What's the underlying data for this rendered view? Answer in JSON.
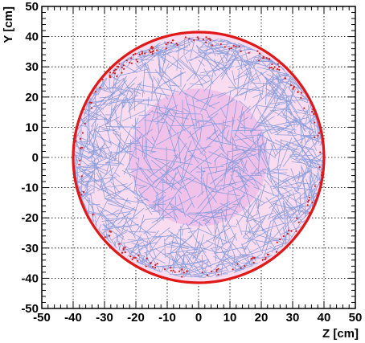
{
  "chart_data": {
    "type": "scatter",
    "title": "",
    "xlabel": "Z [cm]",
    "ylabel": "Y [cm]",
    "xlim": [
      -50,
      50
    ],
    "ylim": [
      -50,
      50
    ],
    "xticks": [
      "-50",
      "-40",
      "-30",
      "-20",
      "-10",
      "0",
      "10",
      "20",
      "30",
      "40",
      "50"
    ],
    "yticks": [
      "-50",
      "-40",
      "-30",
      "-20",
      "-10",
      "0",
      "10",
      "20",
      "30",
      "40",
      "50"
    ],
    "grid": true,
    "regions": [
      {
        "name": "outer-disk",
        "shape": "circle",
        "center": [
          0,
          0
        ],
        "radius": 40,
        "fill": "#f9dcef",
        "edge": "#e01818"
      },
      {
        "name": "inner-disk",
        "shape": "circle",
        "center": [
          0,
          0
        ],
        "radius": 22,
        "fill": "#f0c2ea"
      }
    ],
    "tracks": {
      "color": "#7f98dc",
      "count_shown": 1200,
      "distribution": "dense near rim, sparse near center"
    },
    "boundary_hits": {
      "color": "#e01818",
      "radius": 40
    }
  },
  "colors": {
    "axis": "#000000",
    "grid": "#000000",
    "track": "#7f98dc",
    "rim": "#e01818",
    "outer_fill": "#f9dcef",
    "inner_fill": "#f0c2ea"
  }
}
